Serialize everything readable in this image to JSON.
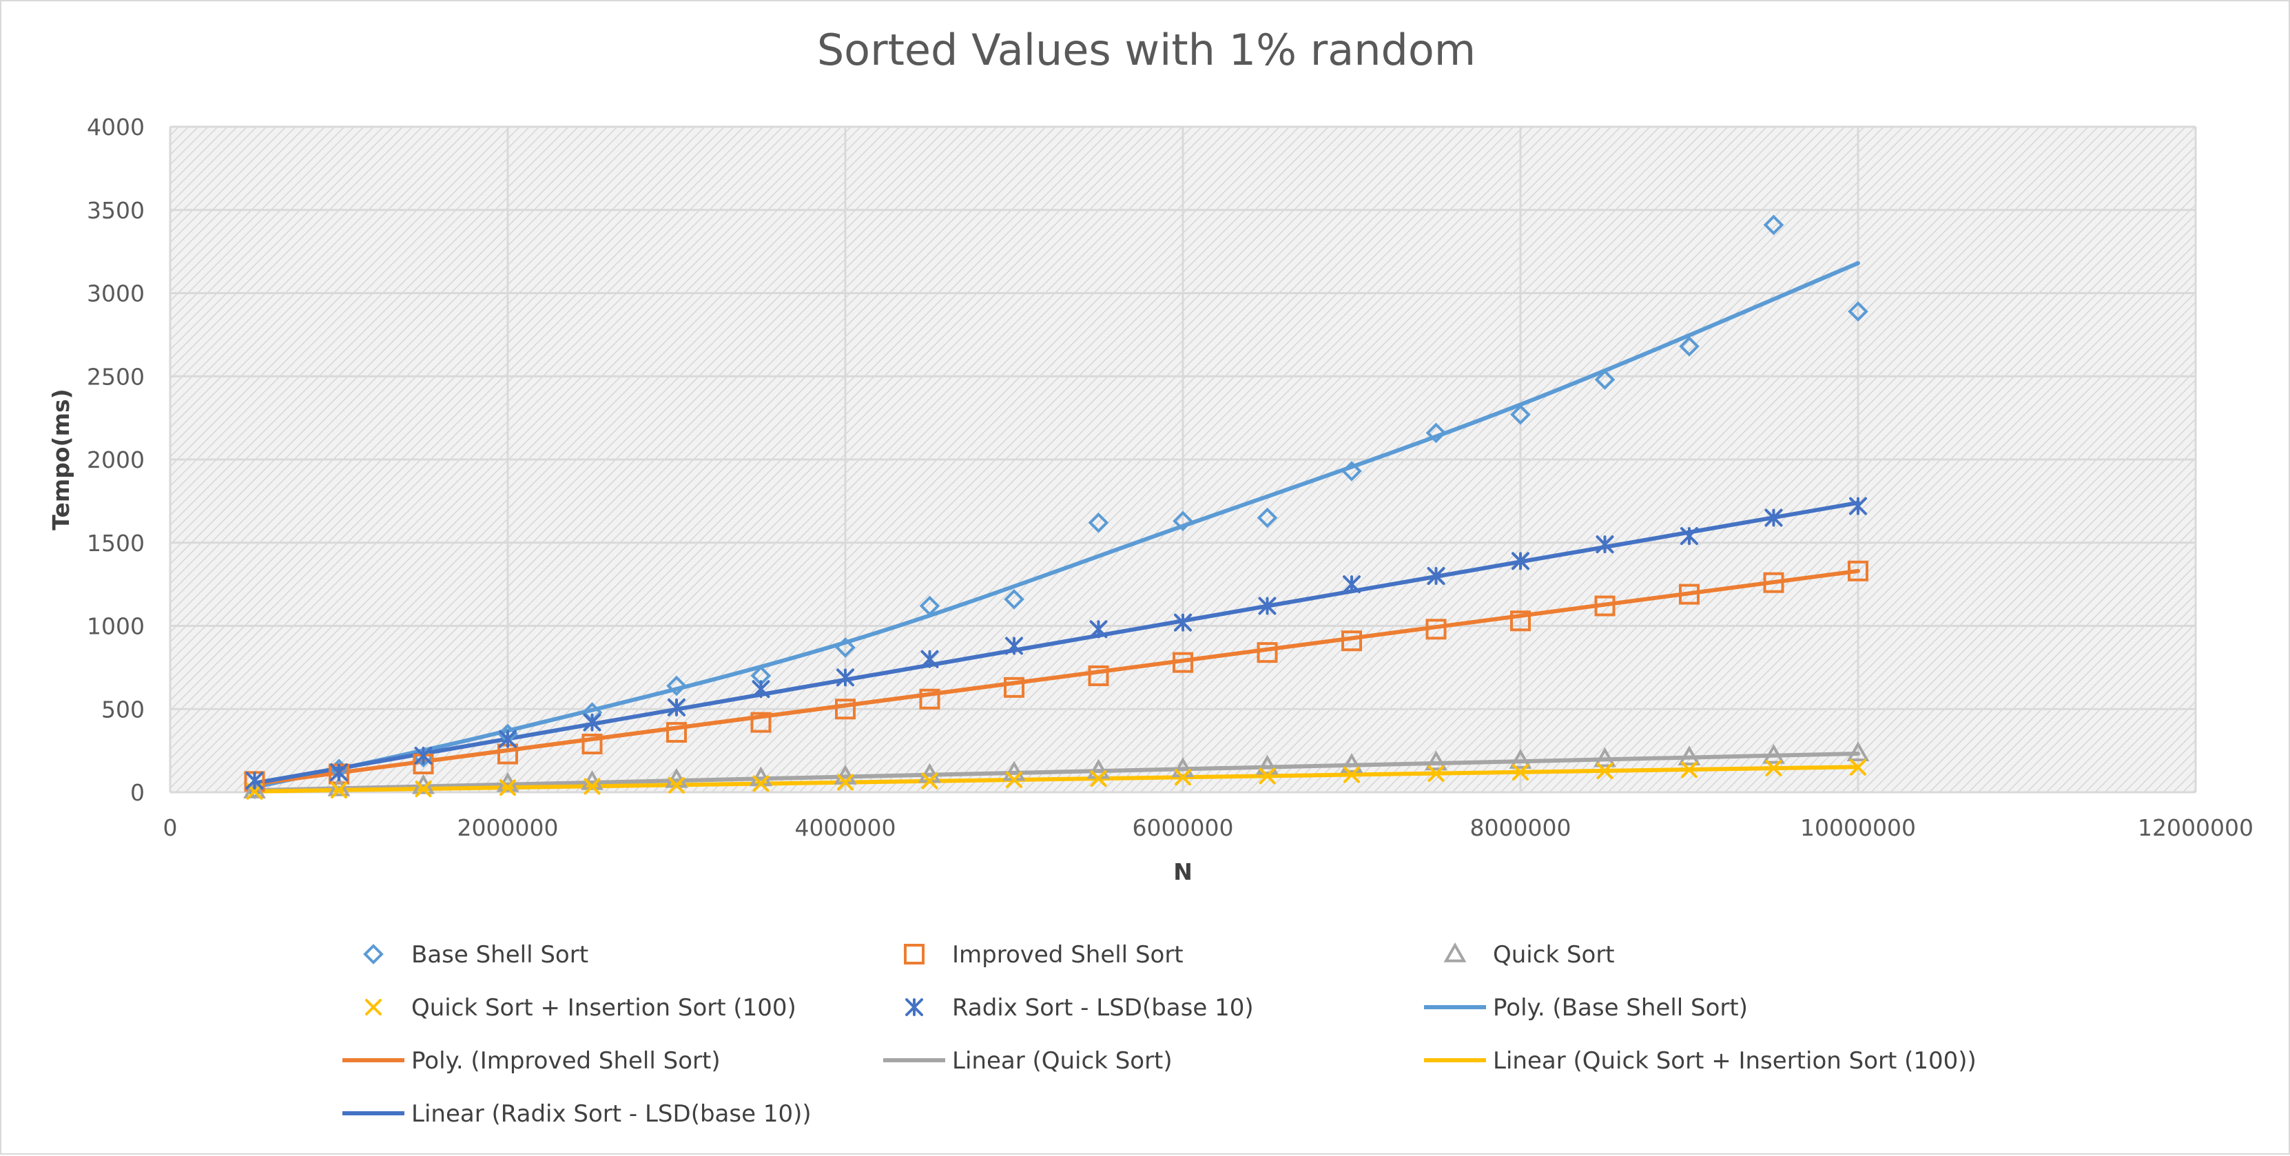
{
  "chart_data": {
    "type": "scatter",
    "title": "Sorted Values with 1% random",
    "xlabel": "N",
    "ylabel": "Tempo(ms)",
    "xlim": [
      0,
      12000000
    ],
    "ylim": [
      0,
      4000
    ],
    "x_ticks": [
      "0",
      "2000000",
      "4000000",
      "6000000",
      "8000000",
      "10000000",
      "12000000"
    ],
    "y_ticks": [
      "0",
      "500",
      "1000",
      "1500",
      "2000",
      "2500",
      "3000",
      "3500",
      "4000"
    ],
    "grid": true,
    "legend_position": "bottom",
    "x": [
      500000,
      1000000,
      1500000,
      2000000,
      2500000,
      3000000,
      3500000,
      4000000,
      4500000,
      5000000,
      5500000,
      6000000,
      6500000,
      7000000,
      7500000,
      8000000,
      8500000,
      9000000,
      9500000,
      10000000
    ],
    "series": [
      {
        "name": "Base Shell Sort",
        "marker": "diamond",
        "color": "#5b9bd5",
        "values": [
          20,
          140,
          210,
          350,
          480,
          640,
          700,
          870,
          1120,
          1160,
          1620,
          1630,
          1650,
          1930,
          2160,
          2270,
          2480,
          2680,
          3410,
          2890
        ]
      },
      {
        "name": "Improved Shell Sort",
        "marker": "square",
        "color": "#ed7d31",
        "values": [
          65,
          110,
          170,
          230,
          290,
          360,
          420,
          500,
          560,
          630,
          700,
          780,
          840,
          910,
          980,
          1030,
          1120,
          1190,
          1260,
          1330
        ]
      },
      {
        "name": "Quick Sort",
        "marker": "triangle",
        "color": "#a5a5a5",
        "values": [
          12,
          25,
          38,
          50,
          62,
          75,
          85,
          95,
          105,
          118,
          130,
          140,
          155,
          165,
          180,
          190,
          200,
          210,
          220,
          235
        ]
      },
      {
        "name": "Quick Sort + Insertion Sort (100)",
        "marker": "x",
        "color": "#ffc000",
        "values": [
          5,
          12,
          20,
          28,
          35,
          42,
          52,
          60,
          68,
          75,
          82,
          90,
          98,
          105,
          112,
          120,
          128,
          135,
          145,
          150
        ]
      },
      {
        "name": "Radix Sort - LSD(base 10)",
        "marker": "star",
        "color": "#4472c4",
        "values": [
          70,
          120,
          220,
          320,
          420,
          510,
          620,
          690,
          800,
          880,
          980,
          1020,
          1120,
          1250,
          1300,
          1390,
          1490,
          1540,
          1650,
          1720
        ]
      }
    ],
    "trendlines": [
      {
        "name": "Poly. (Base Shell Sort)",
        "type": "polynomial",
        "color": "#5b9bd5",
        "points": [
          [
            500000,
            30
          ],
          [
            2000000,
            370
          ],
          [
            4000000,
            900
          ],
          [
            6000000,
            1600
          ],
          [
            8000000,
            2330
          ],
          [
            10000000,
            3180
          ]
        ]
      },
      {
        "name": "Poly. (Improved Shell Sort)",
        "type": "polynomial",
        "color": "#ed7d31",
        "points": [
          [
            500000,
            50
          ],
          [
            10000000,
            1330
          ]
        ]
      },
      {
        "name": "Linear (Quick Sort)",
        "type": "linear",
        "color": "#a5a5a5",
        "points": [
          [
            500000,
            12
          ],
          [
            10000000,
            232
          ]
        ]
      },
      {
        "name": "Linear (Quick Sort + Insertion Sort (100))",
        "type": "linear",
        "color": "#ffc000",
        "points": [
          [
            500000,
            5
          ],
          [
            10000000,
            152
          ]
        ]
      },
      {
        "name": "Linear (Radix Sort - LSD(base 10))",
        "type": "linear",
        "color": "#4472c4",
        "points": [
          [
            500000,
            55
          ],
          [
            10000000,
            1740
          ]
        ]
      }
    ]
  }
}
